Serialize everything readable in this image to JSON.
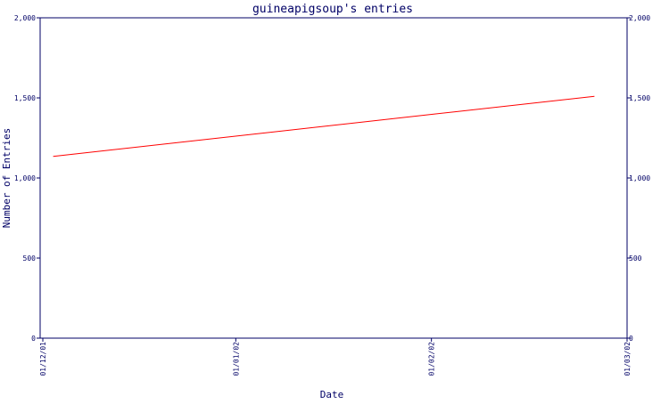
{
  "chart_data": {
    "type": "line",
    "title": "guineapigsoup's entries",
    "xlabel": "Date",
    "ylabel": "Number of Entries",
    "x_ticks": [
      "01/12/01",
      "01/01/02",
      "01/02/02",
      "01/03/02"
    ],
    "y_ticks": [
      "0",
      "500",
      "1,000",
      "1,500",
      "2,000"
    ],
    "ylim": [
      0,
      2000
    ],
    "xlim": [
      "2001-12-01",
      "2002-03-01"
    ],
    "grid": false,
    "series": [
      {
        "x": [
          "2001-12-03",
          "2002-02-24"
        ],
        "values": [
          1135,
          1510
        ]
      }
    ],
    "colors": {
      "axis": "#000066",
      "text": "#000066",
      "line": "#ff0000",
      "background": "#ffffff"
    }
  }
}
